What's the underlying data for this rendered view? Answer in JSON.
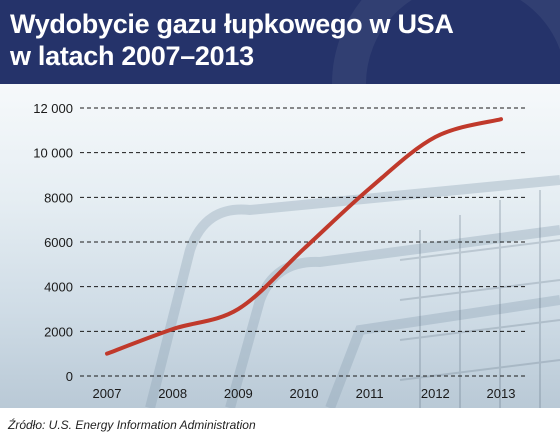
{
  "header": {
    "title": "Wydobycie gazu łupkowego w USA\nw latach 2007–2013"
  },
  "source": "Źródło: U.S. Energy Information Administration",
  "colors": {
    "header_bg": "#25336a",
    "line": "#c0392b"
  },
  "chart_data": {
    "type": "line",
    "title": "Wydobycie gazu łupkowego w USA w latach 2007–2013",
    "xlabel": "",
    "ylabel": "",
    "x": [
      "2007",
      "2008",
      "2009",
      "2010",
      "2011",
      "2012",
      "2013"
    ],
    "y_ticks": [
      "0",
      "2000",
      "4000",
      "6000",
      "8000",
      "10 000",
      "12 000"
    ],
    "ylim": [
      0,
      12000
    ],
    "grid": "dashed horizontal",
    "series": [
      {
        "values": [
          1000,
          2100,
          3000,
          5700,
          8400,
          10700,
          11500
        ]
      }
    ]
  }
}
